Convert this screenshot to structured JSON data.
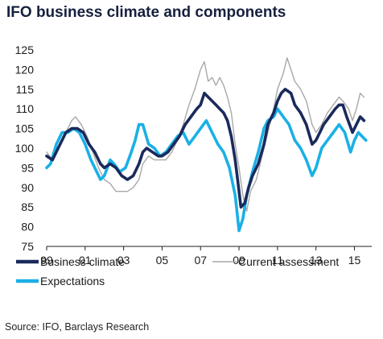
{
  "title": "IFO business climate and components",
  "source": "Source: IFO, Barclays Research",
  "colors": {
    "business_climate": "#1a2a5c",
    "current_assessment": "#a8a8a8",
    "expectations": "#1ab0e6",
    "axis": "#222222"
  },
  "chart_data": {
    "type": "line",
    "xlabel": "",
    "ylabel": "",
    "ylim": [
      75,
      125
    ],
    "xlim": [
      1999.0,
      2015.9
    ],
    "yticks": [
      "75",
      "80",
      "85",
      "90",
      "95",
      "100",
      "105",
      "110",
      "115",
      "120",
      "125"
    ],
    "xticks": [
      "99",
      "01",
      "03",
      "05",
      "07",
      "09",
      "11",
      "13",
      "15"
    ],
    "grid": false,
    "legend_position": "bottom",
    "series": [
      {
        "name": "Business climate",
        "key": "business_climate",
        "points": [
          [
            1999.0,
            98
          ],
          [
            1999.3,
            97
          ],
          [
            1999.6,
            100
          ],
          [
            2000.0,
            104
          ],
          [
            2000.3,
            105
          ],
          [
            2000.6,
            105
          ],
          [
            2000.9,
            104
          ],
          [
            2001.2,
            101
          ],
          [
            2001.5,
            99
          ],
          [
            2001.8,
            96
          ],
          [
            2002.0,
            95
          ],
          [
            2002.3,
            96
          ],
          [
            2002.6,
            95
          ],
          [
            2002.9,
            93
          ],
          [
            2003.2,
            92
          ],
          [
            2003.5,
            93
          ],
          [
            2003.8,
            96
          ],
          [
            2004.0,
            99
          ],
          [
            2004.2,
            100
          ],
          [
            2004.5,
            99
          ],
          [
            2004.8,
            98
          ],
          [
            2005.0,
            98
          ],
          [
            2005.3,
            99
          ],
          [
            2005.6,
            101
          ],
          [
            2005.9,
            103
          ],
          [
            2006.2,
            106
          ],
          [
            2006.5,
            108
          ],
          [
            2006.8,
            110
          ],
          [
            2007.0,
            111
          ],
          [
            2007.2,
            114
          ],
          [
            2007.4,
            113
          ],
          [
            2007.6,
            112
          ],
          [
            2007.8,
            111
          ],
          [
            2008.0,
            110
          ],
          [
            2008.2,
            109
          ],
          [
            2008.4,
            107
          ],
          [
            2008.6,
            103
          ],
          [
            2008.8,
            97
          ],
          [
            2008.95,
            91
          ],
          [
            2009.1,
            85
          ],
          [
            2009.3,
            86
          ],
          [
            2009.5,
            90
          ],
          [
            2009.7,
            93
          ],
          [
            2010.0,
            96
          ],
          [
            2010.3,
            101
          ],
          [
            2010.5,
            106
          ],
          [
            2010.8,
            109
          ],
          [
            2011.0,
            112
          ],
          [
            2011.2,
            114
          ],
          [
            2011.4,
            115
          ],
          [
            2011.7,
            114
          ],
          [
            2011.9,
            111
          ],
          [
            2012.2,
            109
          ],
          [
            2012.5,
            106
          ],
          [
            2012.8,
            101
          ],
          [
            2013.0,
            102
          ],
          [
            2013.2,
            104
          ],
          [
            2013.4,
            106
          ],
          [
            2013.7,
            108
          ],
          [
            2014.0,
            110
          ],
          [
            2014.2,
            111
          ],
          [
            2014.4,
            111
          ],
          [
            2014.6,
            108
          ],
          [
            2014.9,
            104
          ],
          [
            2015.1,
            106
          ],
          [
            2015.3,
            108
          ],
          [
            2015.5,
            107
          ]
        ]
      },
      {
        "name": "Current assessment",
        "key": "current_assessment",
        "points": [
          [
            1999.0,
            99
          ],
          [
            1999.3,
            97
          ],
          [
            1999.6,
            100
          ],
          [
            2000.0,
            104
          ],
          [
            2000.3,
            107
          ],
          [
            2000.5,
            108
          ],
          [
            2000.8,
            106
          ],
          [
            2001.1,
            103
          ],
          [
            2001.4,
            99
          ],
          [
            2001.7,
            95
          ],
          [
            2002.0,
            92
          ],
          [
            2002.3,
            91
          ],
          [
            2002.6,
            89
          ],
          [
            2002.9,
            89
          ],
          [
            2003.2,
            89
          ],
          [
            2003.5,
            90
          ],
          [
            2003.8,
            92
          ],
          [
            2004.0,
            96
          ],
          [
            2004.3,
            98
          ],
          [
            2004.6,
            97
          ],
          [
            2004.9,
            97
          ],
          [
            2005.2,
            97
          ],
          [
            2005.5,
            99
          ],
          [
            2005.8,
            102
          ],
          [
            2006.1,
            106
          ],
          [
            2006.4,
            111
          ],
          [
            2006.7,
            115
          ],
          [
            2007.0,
            120
          ],
          [
            2007.2,
            122
          ],
          [
            2007.4,
            117
          ],
          [
            2007.6,
            118
          ],
          [
            2007.8,
            116
          ],
          [
            2008.0,
            118
          ],
          [
            2008.2,
            116
          ],
          [
            2008.4,
            113
          ],
          [
            2008.6,
            109
          ],
          [
            2008.8,
            101
          ],
          [
            2009.0,
            95
          ],
          [
            2009.2,
            88
          ],
          [
            2009.4,
            84
          ],
          [
            2009.6,
            89
          ],
          [
            2009.9,
            92
          ],
          [
            2010.2,
            98
          ],
          [
            2010.5,
            104
          ],
          [
            2010.8,
            110
          ],
          [
            2011.0,
            115
          ],
          [
            2011.3,
            119
          ],
          [
            2011.5,
            123
          ],
          [
            2011.7,
            120
          ],
          [
            2011.9,
            117
          ],
          [
            2012.2,
            115
          ],
          [
            2012.5,
            112
          ],
          [
            2012.8,
            106
          ],
          [
            2013.0,
            104
          ],
          [
            2013.3,
            106
          ],
          [
            2013.6,
            109
          ],
          [
            2013.9,
            111
          ],
          [
            2014.2,
            113
          ],
          [
            2014.4,
            112
          ],
          [
            2014.7,
            110
          ],
          [
            2014.9,
            107
          ],
          [
            2015.1,
            110
          ],
          [
            2015.3,
            114
          ],
          [
            2015.5,
            113
          ]
        ]
      },
      {
        "name": "Expectations",
        "key": "expectations",
        "points": [
          [
            1999.0,
            95
          ],
          [
            1999.2,
            96
          ],
          [
            1999.5,
            101
          ],
          [
            1999.8,
            104
          ],
          [
            2000.1,
            104
          ],
          [
            2000.4,
            105
          ],
          [
            2000.7,
            104
          ],
          [
            2001.0,
            101
          ],
          [
            2001.3,
            97
          ],
          [
            2001.6,
            94
          ],
          [
            2001.8,
            92
          ],
          [
            2002.0,
            93
          ],
          [
            2002.3,
            97
          ],
          [
            2002.5,
            96
          ],
          [
            2002.8,
            94
          ],
          [
            2003.1,
            95
          ],
          [
            2003.4,
            99
          ],
          [
            2003.6,
            102
          ],
          [
            2003.8,
            106
          ],
          [
            2004.0,
            106
          ],
          [
            2004.3,
            101
          ],
          [
            2004.6,
            100
          ],
          [
            2004.9,
            98
          ],
          [
            2005.2,
            99
          ],
          [
            2005.5,
            101
          ],
          [
            2005.8,
            103
          ],
          [
            2006.1,
            104
          ],
          [
            2006.4,
            101
          ],
          [
            2006.7,
            103
          ],
          [
            2007.0,
            105
          ],
          [
            2007.3,
            107
          ],
          [
            2007.6,
            104
          ],
          [
            2007.9,
            101
          ],
          [
            2008.2,
            99
          ],
          [
            2008.5,
            95
          ],
          [
            2008.8,
            88
          ],
          [
            2009.0,
            79
          ],
          [
            2009.2,
            82
          ],
          [
            2009.4,
            88
          ],
          [
            2009.7,
            94
          ],
          [
            2010.0,
            99
          ],
          [
            2010.3,
            105
          ],
          [
            2010.5,
            107
          ],
          [
            2010.8,
            108
          ],
          [
            2011.0,
            110
          ],
          [
            2011.3,
            108
          ],
          [
            2011.6,
            106
          ],
          [
            2011.9,
            102
          ],
          [
            2012.2,
            100
          ],
          [
            2012.5,
            97
          ],
          [
            2012.8,
            93
          ],
          [
            2013.0,
            95
          ],
          [
            2013.3,
            100
          ],
          [
            2013.6,
            102
          ],
          [
            2013.9,
            104
          ],
          [
            2014.2,
            106
          ],
          [
            2014.5,
            104
          ],
          [
            2014.8,
            99
          ],
          [
            2015.0,
            102
          ],
          [
            2015.2,
            104
          ],
          [
            2015.4,
            103
          ],
          [
            2015.6,
            102
          ]
        ]
      }
    ]
  },
  "legend": {
    "business_climate": "Business climate",
    "current_assessment": "Current assessment",
    "expectations": "Expectations"
  }
}
